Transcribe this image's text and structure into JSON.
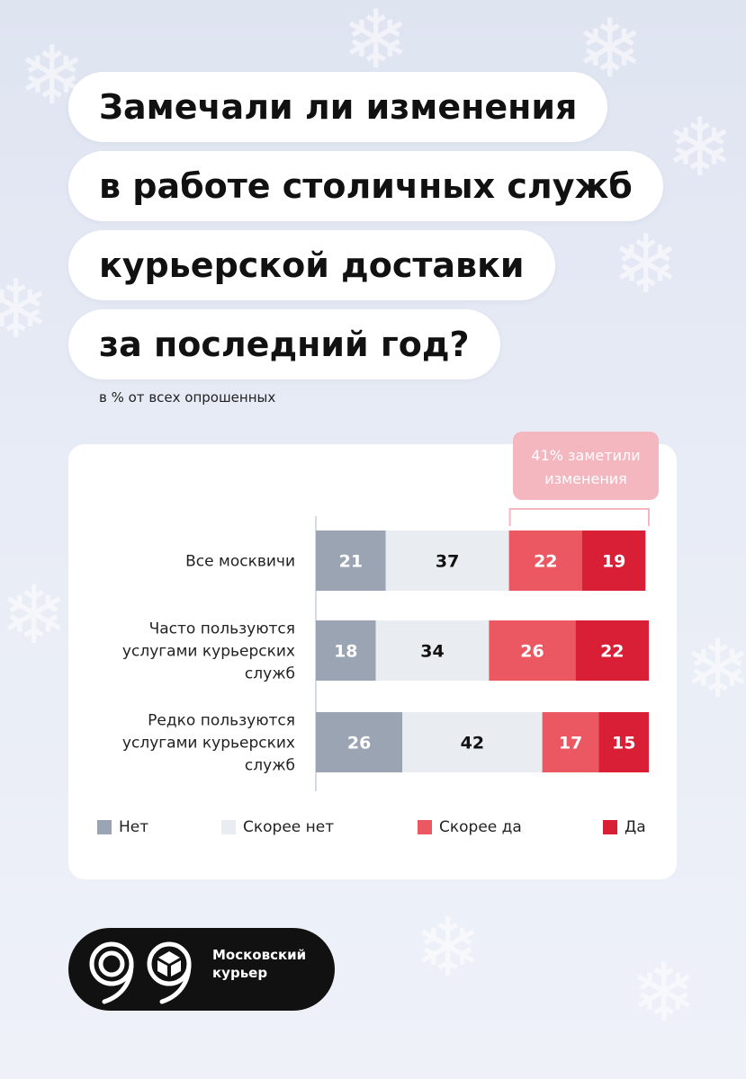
{
  "title_lines": [
    "Замечали ли изменения",
    "в работе столичных служб",
    "курьерской доставки",
    "за последний год?"
  ],
  "subtitle": "в % от всех опрошенных",
  "callout": {
    "line1": "41% заметили",
    "line2": "изменения"
  },
  "colors": {
    "net": "#9aa4b3",
    "skoree_net": "#e9edf2",
    "skoree_da": "#ec5861",
    "da": "#d81f35",
    "callout": "#f4b6bf"
  },
  "chart_data": {
    "type": "bar",
    "orientation": "horizontal",
    "stacked": true,
    "categories": [
      [
        "Все москвичи"
      ],
      [
        "Часто пользуются",
        "услугами курьерских",
        "служб"
      ],
      [
        "Редко пользуются",
        "услугами курьерских",
        "служб"
      ]
    ],
    "series": [
      {
        "name": "Нет",
        "values": [
          21,
          18,
          26
        ]
      },
      {
        "name": "Скорее нет",
        "values": [
          37,
          34,
          42
        ]
      },
      {
        "name": "Скорее да",
        "values": [
          22,
          26,
          17
        ]
      },
      {
        "name": "Да",
        "values": [
          19,
          22,
          15
        ]
      }
    ],
    "xlim": [
      0,
      100
    ],
    "legend": "bottom"
  },
  "logo": {
    "line1": "Московский",
    "line2": "курьер"
  }
}
